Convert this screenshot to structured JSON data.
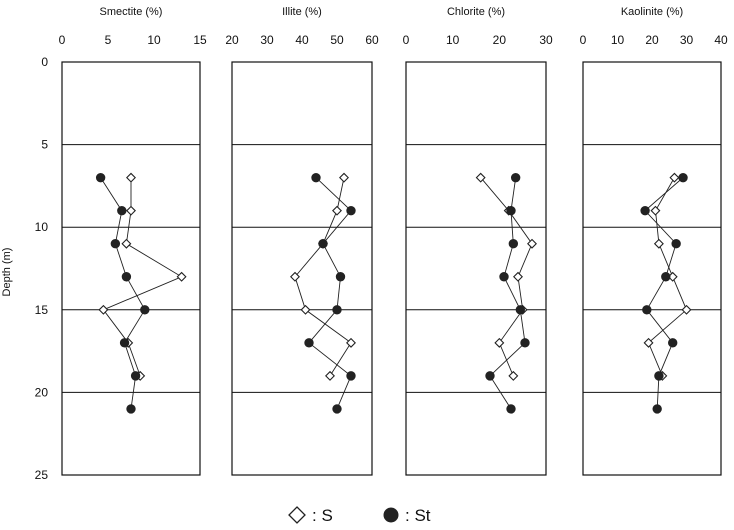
{
  "depth_axis": {
    "label": "Depth (m)",
    "ticks": [
      0,
      5,
      10,
      15,
      20,
      25
    ],
    "range": [
      0,
      25
    ]
  },
  "legend": {
    "s_label": ": S",
    "st_label": ": St"
  },
  "colors": {
    "line": "#222222",
    "open_marker_fill": "#ffffff",
    "filled_marker": "#222222",
    "frame": "#111111"
  },
  "chart_data": [
    {
      "type": "line",
      "title": "Smectite (%)",
      "xlim": [
        0,
        15
      ],
      "xticks": [
        0,
        5,
        10,
        15
      ],
      "ylabel": "Depth (m)",
      "ylim": [
        0,
        25
      ],
      "grid": "horizontal lines at 5, 10, 15, 20 m",
      "series": [
        {
          "name": "S",
          "marker": "open-diamond",
          "points": [
            [
              7.5,
              7
            ],
            [
              7.5,
              9
            ],
            [
              7,
              11
            ],
            [
              13,
              13
            ],
            [
              4.5,
              15
            ],
            [
              7.2,
              17
            ],
            [
              8.5,
              19
            ]
          ]
        },
        {
          "name": "St",
          "marker": "filled-circle",
          "points": [
            [
              4.2,
              7
            ],
            [
              6.5,
              9
            ],
            [
              5.8,
              11
            ],
            [
              7,
              13
            ],
            [
              9,
              15
            ],
            [
              6.8,
              17
            ],
            [
              8,
              19
            ],
            [
              7.5,
              21
            ]
          ]
        }
      ]
    },
    {
      "type": "line",
      "title": "Illite (%)",
      "xlim": [
        20,
        60
      ],
      "xticks": [
        20,
        30,
        40,
        50,
        60
      ],
      "ylim": [
        0,
        25
      ],
      "series": [
        {
          "name": "S",
          "marker": "open-diamond",
          "points": [
            [
              52,
              7
            ],
            [
              50,
              9
            ],
            [
              46,
              11
            ],
            [
              38,
              13
            ],
            [
              41,
              15
            ],
            [
              54,
              17
            ],
            [
              48,
              19
            ]
          ]
        },
        {
          "name": "St",
          "marker": "filled-circle",
          "points": [
            [
              44,
              7
            ],
            [
              54,
              9
            ],
            [
              46,
              11
            ],
            [
              51,
              13
            ],
            [
              50,
              15
            ],
            [
              42,
              17
            ],
            [
              54,
              19
            ],
            [
              50,
              21
            ]
          ]
        }
      ]
    },
    {
      "type": "line",
      "title": "Chlorite (%)",
      "xlim": [
        0,
        30
      ],
      "xticks": [
        0,
        10,
        20,
        30
      ],
      "ylim": [
        0,
        25
      ],
      "series": [
        {
          "name": "S",
          "marker": "open-diamond",
          "points": [
            [
              16,
              7
            ],
            [
              22,
              9
            ],
            [
              27,
              11
            ],
            [
              24,
              13
            ],
            [
              25,
              15
            ],
            [
              20,
              17
            ],
            [
              23,
              19
            ]
          ]
        },
        {
          "name": "St",
          "marker": "filled-circle",
          "points": [
            [
              23.5,
              7
            ],
            [
              22.5,
              9
            ],
            [
              23,
              11
            ],
            [
              21,
              13
            ],
            [
              24.5,
              15
            ],
            [
              25.5,
              17
            ],
            [
              18,
              19
            ],
            [
              22.5,
              21
            ]
          ]
        }
      ]
    },
    {
      "type": "line",
      "title": "Kaolinite (%)",
      "xlim": [
        0,
        40
      ],
      "xticks": [
        0,
        10,
        20,
        30,
        40
      ],
      "ylim": [
        0,
        25
      ],
      "series": [
        {
          "name": "S",
          "marker": "open-diamond",
          "points": [
            [
              26.5,
              7
            ],
            [
              21,
              9
            ],
            [
              22,
              11
            ],
            [
              26,
              13
            ],
            [
              30,
              15
            ],
            [
              19,
              17
            ],
            [
              23,
              19
            ]
          ]
        },
        {
          "name": "St",
          "marker": "filled-circle",
          "points": [
            [
              29,
              7
            ],
            [
              18,
              9
            ],
            [
              27,
              11
            ],
            [
              24,
              13
            ],
            [
              18.5,
              15
            ],
            [
              26,
              17
            ],
            [
              22,
              19
            ],
            [
              21.5,
              21
            ]
          ]
        }
      ]
    }
  ]
}
